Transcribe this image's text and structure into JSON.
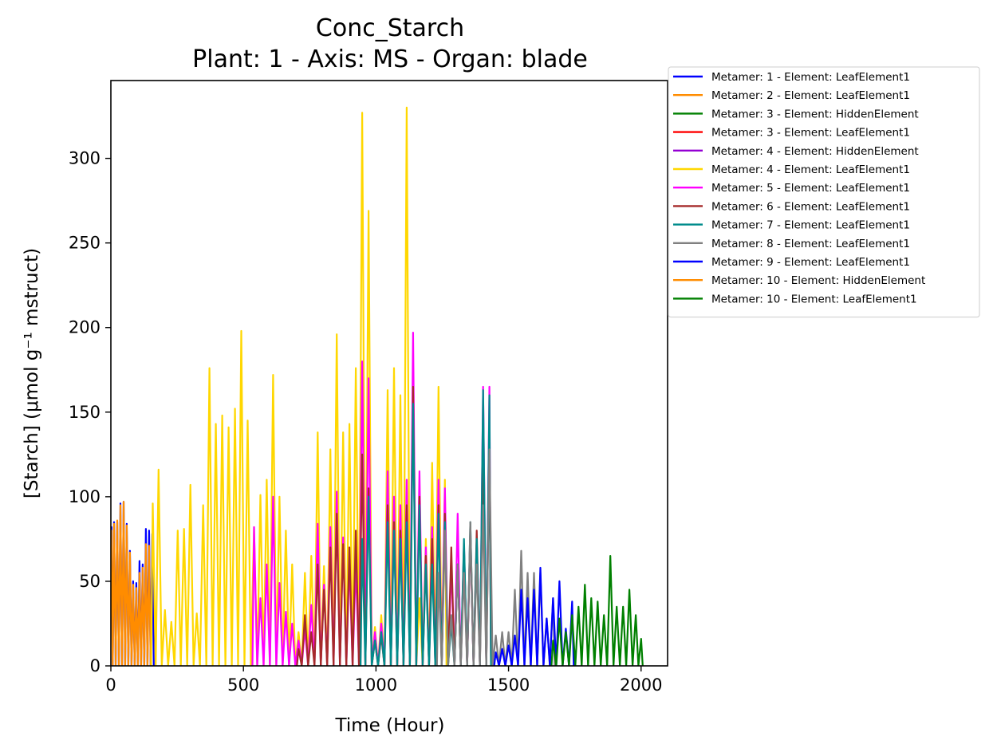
{
  "chart_data": {
    "type": "line",
    "title": "Conc_Starch",
    "subtitle": "Plant: 1 - Axis: MS - Organ: blade",
    "xlabel": "Time (Hour)",
    "ylabel": "[Starch] (μmol g⁻¹ mstruct)",
    "xlim": [
      0,
      2100
    ],
    "ylim": [
      0,
      346
    ],
    "xticks": [
      0,
      500,
      1000,
      1500,
      2000
    ],
    "yticks": [
      0,
      50,
      100,
      150,
      200,
      250,
      300
    ],
    "grid": false,
    "legend_position": "outside-right",
    "series": [
      {
        "name": "Metamer: 1 - Element: LeafElement1",
        "color": "#0000ff",
        "x": [
          2,
          12,
          24,
          36,
          48,
          60,
          72,
          84,
          96,
          108,
          120,
          132,
          144,
          156
        ],
        "y": [
          82,
          85,
          85,
          96,
          97,
          84,
          68,
          50,
          49,
          62,
          60,
          81,
          80,
          78
        ]
      },
      {
        "name": "Metamer: 2 - Element: LeafElement1",
        "color": "#ff8c00",
        "x": [
          2,
          12,
          24,
          36,
          48,
          60,
          72,
          84,
          96,
          108,
          120,
          132,
          144
        ],
        "y": [
          80,
          84,
          86,
          95,
          97,
          83,
          67,
          48,
          46,
          55,
          58,
          72,
          71
        ]
      },
      {
        "name": "Metamer: 3 - Element: HiddenElement",
        "color": "#008000",
        "x": [],
        "y": []
      },
      {
        "name": "Metamer: 3 - Element: LeafElement1",
        "color": "#ff0000",
        "x": [],
        "y": []
      },
      {
        "name": "Metamer: 4 - Element: HiddenElement",
        "color": "#9400d3",
        "x": [],
        "y": []
      },
      {
        "name": "Metamer: 4 - Element: LeafElement1",
        "color": "#ffd700",
        "x": [
          158,
          180,
          204,
          228,
          252,
          276,
          300,
          324,
          348,
          372,
          396,
          420,
          444,
          468,
          492,
          516,
          540,
          564,
          588,
          612,
          636,
          660,
          684,
          708,
          732,
          756,
          780,
          804,
          828,
          852,
          876,
          900,
          924,
          948,
          972,
          996,
          1020,
          1044,
          1068,
          1092,
          1116,
          1140,
          1164,
          1188,
          1212,
          1236,
          1260
        ],
        "y": [
          96,
          116,
          33,
          26,
          80,
          81,
          107,
          31,
          95,
          176,
          143,
          148,
          141,
          152,
          198,
          145,
          82,
          101,
          110,
          172,
          100,
          80,
          60,
          20,
          55,
          65,
          138,
          59,
          128,
          196,
          138,
          143,
          176,
          327,
          269,
          23,
          30,
          163,
          176,
          160,
          330,
          178,
          40,
          75,
          120,
          165,
          110
        ]
      },
      {
        "name": "Metamer: 5 - Element: LeafElement1",
        "color": "#ff00ff",
        "x": [
          540,
          564,
          588,
          612,
          636,
          660,
          684,
          708,
          732,
          756,
          780,
          804,
          828,
          852,
          876,
          900,
          924,
          948,
          972,
          996,
          1020,
          1044,
          1068,
          1092,
          1116,
          1140,
          1164,
          1188,
          1212,
          1236,
          1260,
          1284,
          1308,
          1332,
          1356,
          1380,
          1404,
          1428
        ],
        "y": [
          82,
          40,
          60,
          100,
          49,
          32,
          25,
          15,
          22,
          36,
          84,
          48,
          82,
          103,
          76,
          62,
          60,
          180,
          170,
          20,
          25,
          115,
          100,
          95,
          110,
          197,
          115,
          70,
          82,
          110,
          105,
          60,
          90,
          72,
          80,
          75,
          165,
          165
        ]
      },
      {
        "name": "Metamer: 6 - Element: LeafElement1",
        "color": "#a52a2a",
        "x": [
          708,
          732,
          756,
          780,
          804,
          828,
          852,
          876,
          900,
          924,
          948,
          972,
          996,
          1020,
          1044,
          1068,
          1092,
          1116,
          1140,
          1164,
          1188,
          1212,
          1236,
          1260,
          1284,
          1308,
          1332,
          1356,
          1380,
          1404,
          1428
        ],
        "y": [
          10,
          30,
          20,
          60,
          45,
          70,
          90,
          72,
          70,
          80,
          125,
          105,
          15,
          18,
          95,
          85,
          80,
          95,
          165,
          100,
          65,
          75,
          95,
          90,
          70,
          60,
          70,
          80,
          80,
          130,
          128
        ]
      },
      {
        "name": "Metamer: 7 - Element: LeafElement1",
        "color": "#008b8b",
        "x": [
          948,
          972,
          996,
          1020,
          1044,
          1068,
          1092,
          1116,
          1140,
          1164,
          1188,
          1212,
          1236,
          1260,
          1284,
          1308,
          1332,
          1356,
          1380,
          1404,
          1428
        ],
        "y": [
          75,
          100,
          15,
          20,
          85,
          80,
          75,
          85,
          155,
          95,
          60,
          60,
          90,
          85,
          25,
          60,
          75,
          85,
          75,
          163,
          160
        ]
      },
      {
        "name": "Metamer: 8 - Element: LeafElement1",
        "color": "#808080",
        "x": [
          1236,
          1260,
          1284,
          1308,
          1332,
          1356,
          1380,
          1404,
          1428,
          1452,
          1476,
          1500,
          1524,
          1548,
          1572,
          1596,
          1620,
          1644,
          1668
        ],
        "y": [
          55,
          80,
          30,
          60,
          55,
          85,
          60,
          95,
          128,
          18,
          20,
          20,
          45,
          68,
          55,
          55,
          55,
          28,
          40
        ]
      },
      {
        "name": "Metamer: 9 - Element: LeafElement1",
        "color": "#0000ff",
        "x": [
          1452,
          1476,
          1500,
          1524,
          1548,
          1572,
          1596,
          1620,
          1644,
          1668,
          1692,
          1716,
          1740
        ],
        "y": [
          8,
          10,
          12,
          18,
          45,
          40,
          45,
          58,
          28,
          40,
          50,
          22,
          38
        ]
      },
      {
        "name": "Metamer: 10 - Element: HiddenElement",
        "color": "#ff8c00",
        "x": [],
        "y": []
      },
      {
        "name": "Metamer: 10 - Element: LeafElement1",
        "color": "#008000",
        "x": [
          1668,
          1692,
          1716,
          1740,
          1764,
          1788,
          1812,
          1836,
          1860,
          1884,
          1908,
          1932,
          1956,
          1980,
          2000
        ],
        "y": [
          15,
          28,
          20,
          30,
          35,
          48,
          40,
          38,
          30,
          65,
          35,
          35,
          45,
          30,
          16
        ]
      }
    ]
  }
}
